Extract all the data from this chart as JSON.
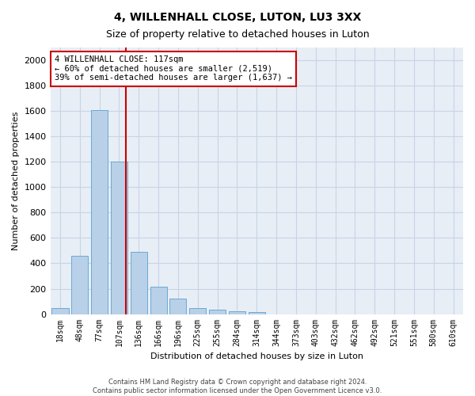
{
  "title": "4, WILLENHALL CLOSE, LUTON, LU3 3XX",
  "subtitle": "Size of property relative to detached houses in Luton",
  "xlabel": "Distribution of detached houses by size in Luton",
  "ylabel": "Number of detached properties",
  "categories": [
    "18sqm",
    "48sqm",
    "77sqm",
    "107sqm",
    "136sqm",
    "166sqm",
    "196sqm",
    "225sqm",
    "255sqm",
    "284sqm",
    "314sqm",
    "344sqm",
    "373sqm",
    "403sqm",
    "432sqm",
    "462sqm",
    "492sqm",
    "521sqm",
    "551sqm",
    "580sqm",
    "610sqm"
  ],
  "values": [
    45,
    460,
    1610,
    1200,
    490,
    215,
    125,
    50,
    35,
    22,
    15,
    0,
    0,
    0,
    0,
    0,
    0,
    0,
    0,
    0,
    0
  ],
  "bar_color": "#b8d0e8",
  "bar_edge_color": "#6aaad4",
  "vline_color": "#cc0000",
  "annotation_line1": "4 WILLENHALL CLOSE: 117sqm",
  "annotation_line2": "← 60% of detached houses are smaller (2,519)",
  "annotation_line3": "39% of semi-detached houses are larger (1,637) →",
  "annotation_box_color": "#cc0000",
  "ylim": [
    0,
    2100
  ],
  "yticks": [
    0,
    200,
    400,
    600,
    800,
    1000,
    1200,
    1400,
    1600,
    1800,
    2000
  ],
  "grid_color": "#c8d4e4",
  "plot_bg": "#e8eef6",
  "footer_line1": "Contains HM Land Registry data © Crown copyright and database right 2024.",
  "footer_line2": "Contains public sector information licensed under the Open Government Licence v3.0.",
  "title_fontsize": 10,
  "subtitle_fontsize": 9,
  "xlabel_fontsize": 8,
  "ylabel_fontsize": 8
}
